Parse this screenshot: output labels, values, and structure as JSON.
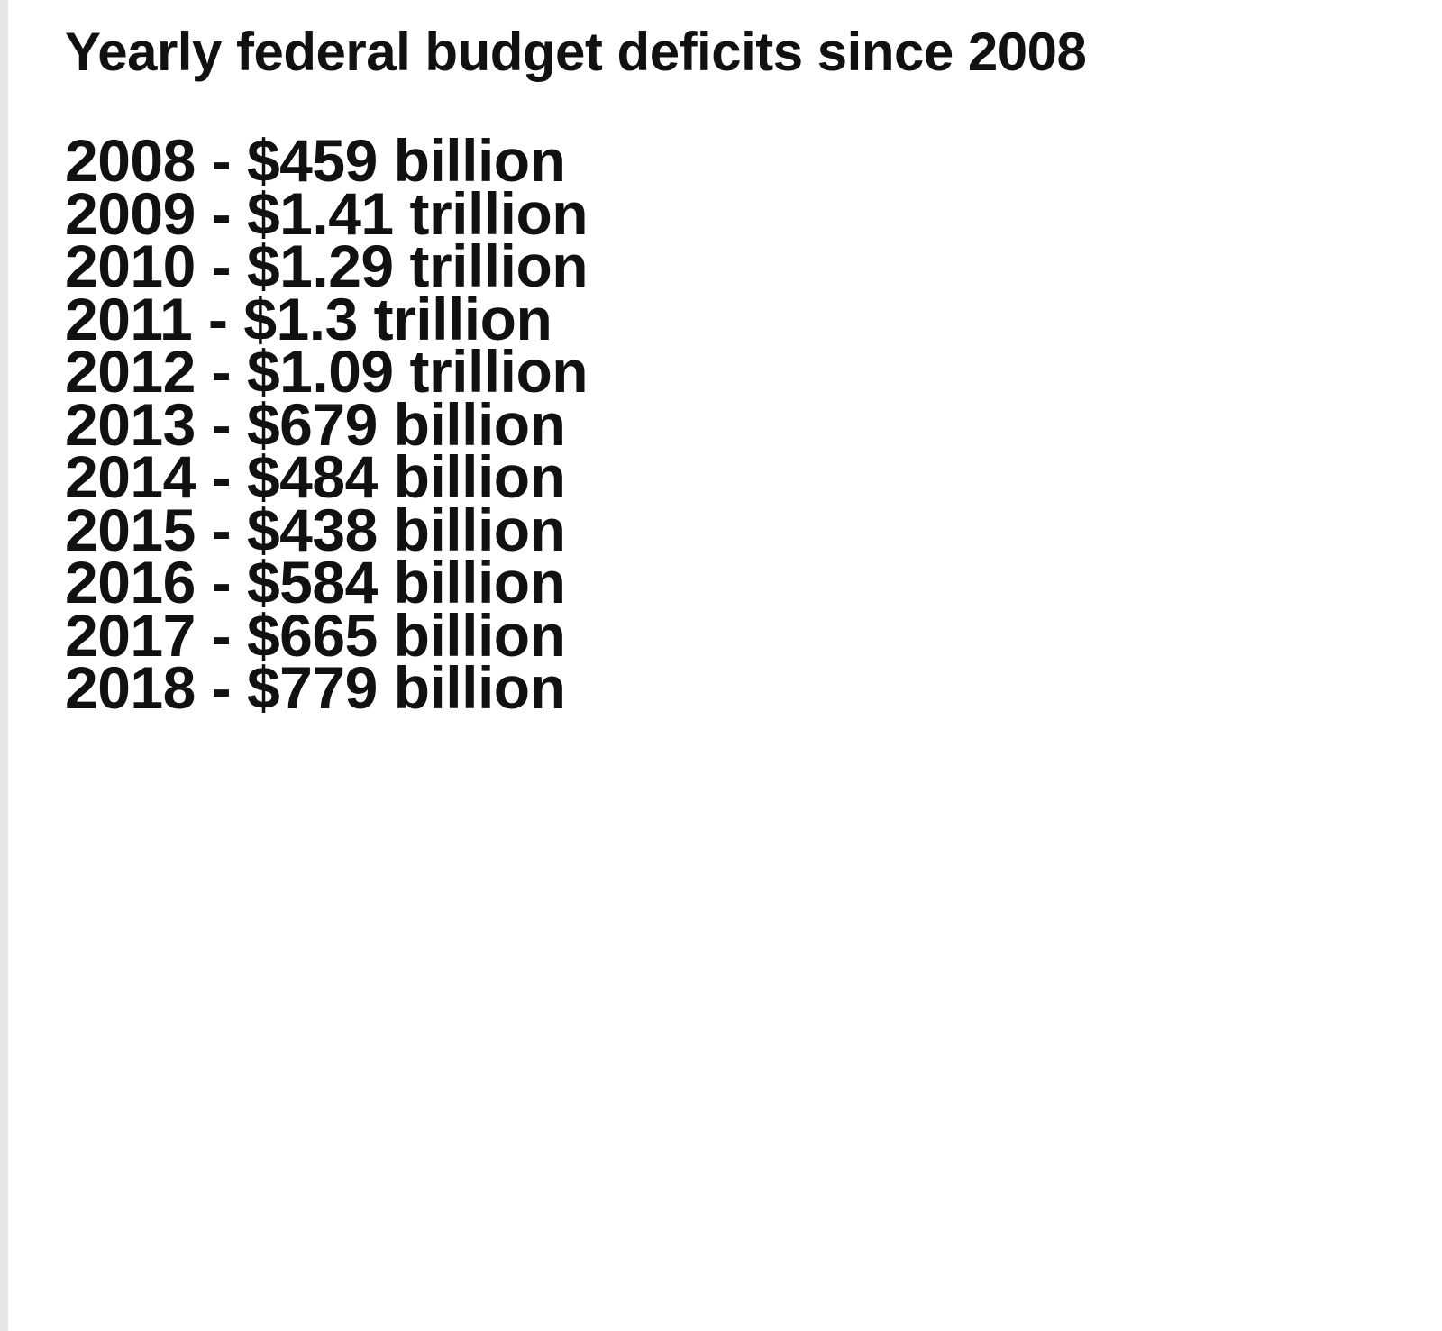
{
  "title": "Yearly federal budget deficits since 2008",
  "items": [
    "2008 - $459 billion",
    "2009 - $1.41 trillion",
    "2010 - $1.29 trillion",
    "2011 - $1.3 trillion",
    "2012 - $1.09 trillion",
    "2013 - $679 billion",
    "2014 - $484 billion",
    "2015 - $438 billion",
    "2016 - $584 billion",
    "2017 - $665 billion",
    "2018 - $779 billion"
  ]
}
